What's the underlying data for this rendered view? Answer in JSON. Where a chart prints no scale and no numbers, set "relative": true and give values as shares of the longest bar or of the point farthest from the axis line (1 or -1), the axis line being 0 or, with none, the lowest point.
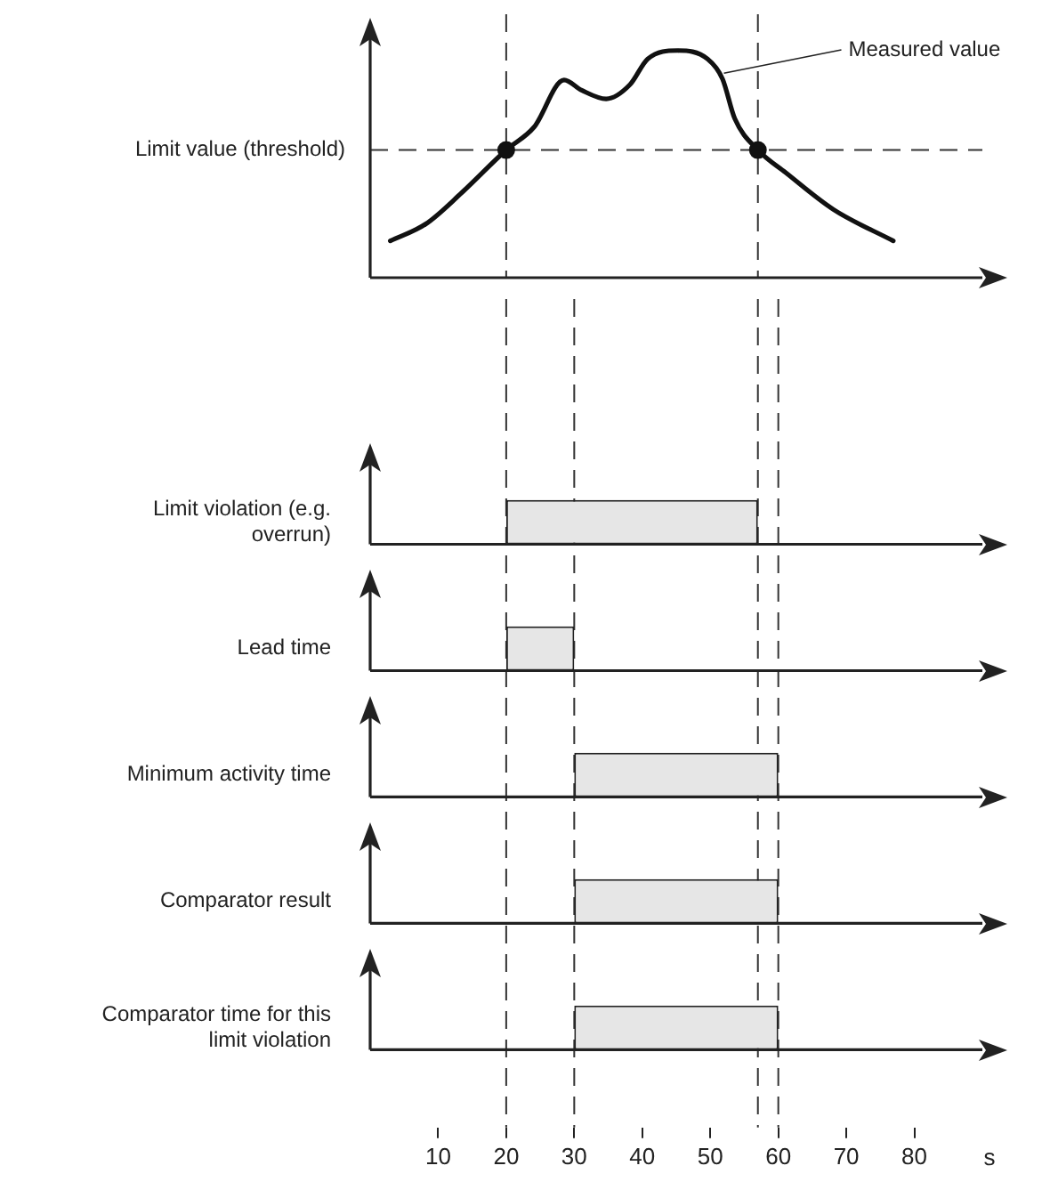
{
  "chart_data": [
    {
      "type": "line",
      "relative": true,
      "xlim": [
        0,
        90
      ],
      "tick_labels": false,
      "legend": false,
      "series": [
        {
          "type": "line",
          "color": "#111111",
          "marker": "none",
          "x": [
            2.96,
            8.2,
            13.5,
            20,
            24.1,
            28.5,
            31.1,
            34.7,
            38.2,
            40.8,
            45.2,
            49.6,
            51.8,
            53.6,
            57,
            61.1,
            68.1,
            76.9
          ],
          "values": [
            0.162,
            0.237,
            0.375,
            0.562,
            0.663,
            0.87,
            0.825,
            0.787,
            0.85,
            0.963,
            1,
            0.963,
            0.875,
            0.7,
            0.562,
            0.462,
            0.3,
            0.162
          ]
        },
        {
          "type": "scatter",
          "color": "#111111",
          "marker": "circle",
          "x": [
            20,
            57
          ],
          "values": [
            0.562,
            0.562
          ]
        }
      ],
      "ref_lines": [
        {
          "axis": "y",
          "value": 0.562,
          "label": "Limit value (threshold)",
          "color": "#333333",
          "line_style": "dashed"
        },
        {
          "axis": "x",
          "value": 20,
          "color": "#333333",
          "line_style": "dashed"
        },
        {
          "axis": "x",
          "value": 57,
          "color": "#333333",
          "line_style": "dashed"
        }
      ],
      "annotations": [
        {
          "text": "Measured value",
          "x": 52,
          "y": 0.9
        }
      ]
    },
    {
      "type": "bar",
      "orientation": "horizontal",
      "xlabel": "s",
      "categories": [
        "Limit violation (e.g. overrun)",
        "Lead time",
        "Minimum activity time",
        "Comparator result",
        "Comparator time for this limit violation"
      ],
      "values": [
        37,
        10,
        30,
        30,
        30
      ],
      "base": [
        20,
        20,
        30,
        30,
        30
      ],
      "color": "#e6e6e6",
      "xlim": [
        0,
        90
      ],
      "xticks": [
        10,
        20,
        30,
        40,
        50,
        60,
        70,
        80
      ],
      "tick_labels": "x",
      "legend": false,
      "ref_lines": [
        {
          "axis": "x",
          "value": 20,
          "color": "#333333",
          "line_style": "dashed"
        },
        {
          "axis": "x",
          "value": 30,
          "color": "#333333",
          "line_style": "dashed"
        },
        {
          "axis": "x",
          "value": 57,
          "color": "#333333",
          "line_style": "dashed"
        },
        {
          "axis": "x",
          "value": 60,
          "color": "#333333",
          "line_style": "dashed"
        }
      ]
    }
  ]
}
